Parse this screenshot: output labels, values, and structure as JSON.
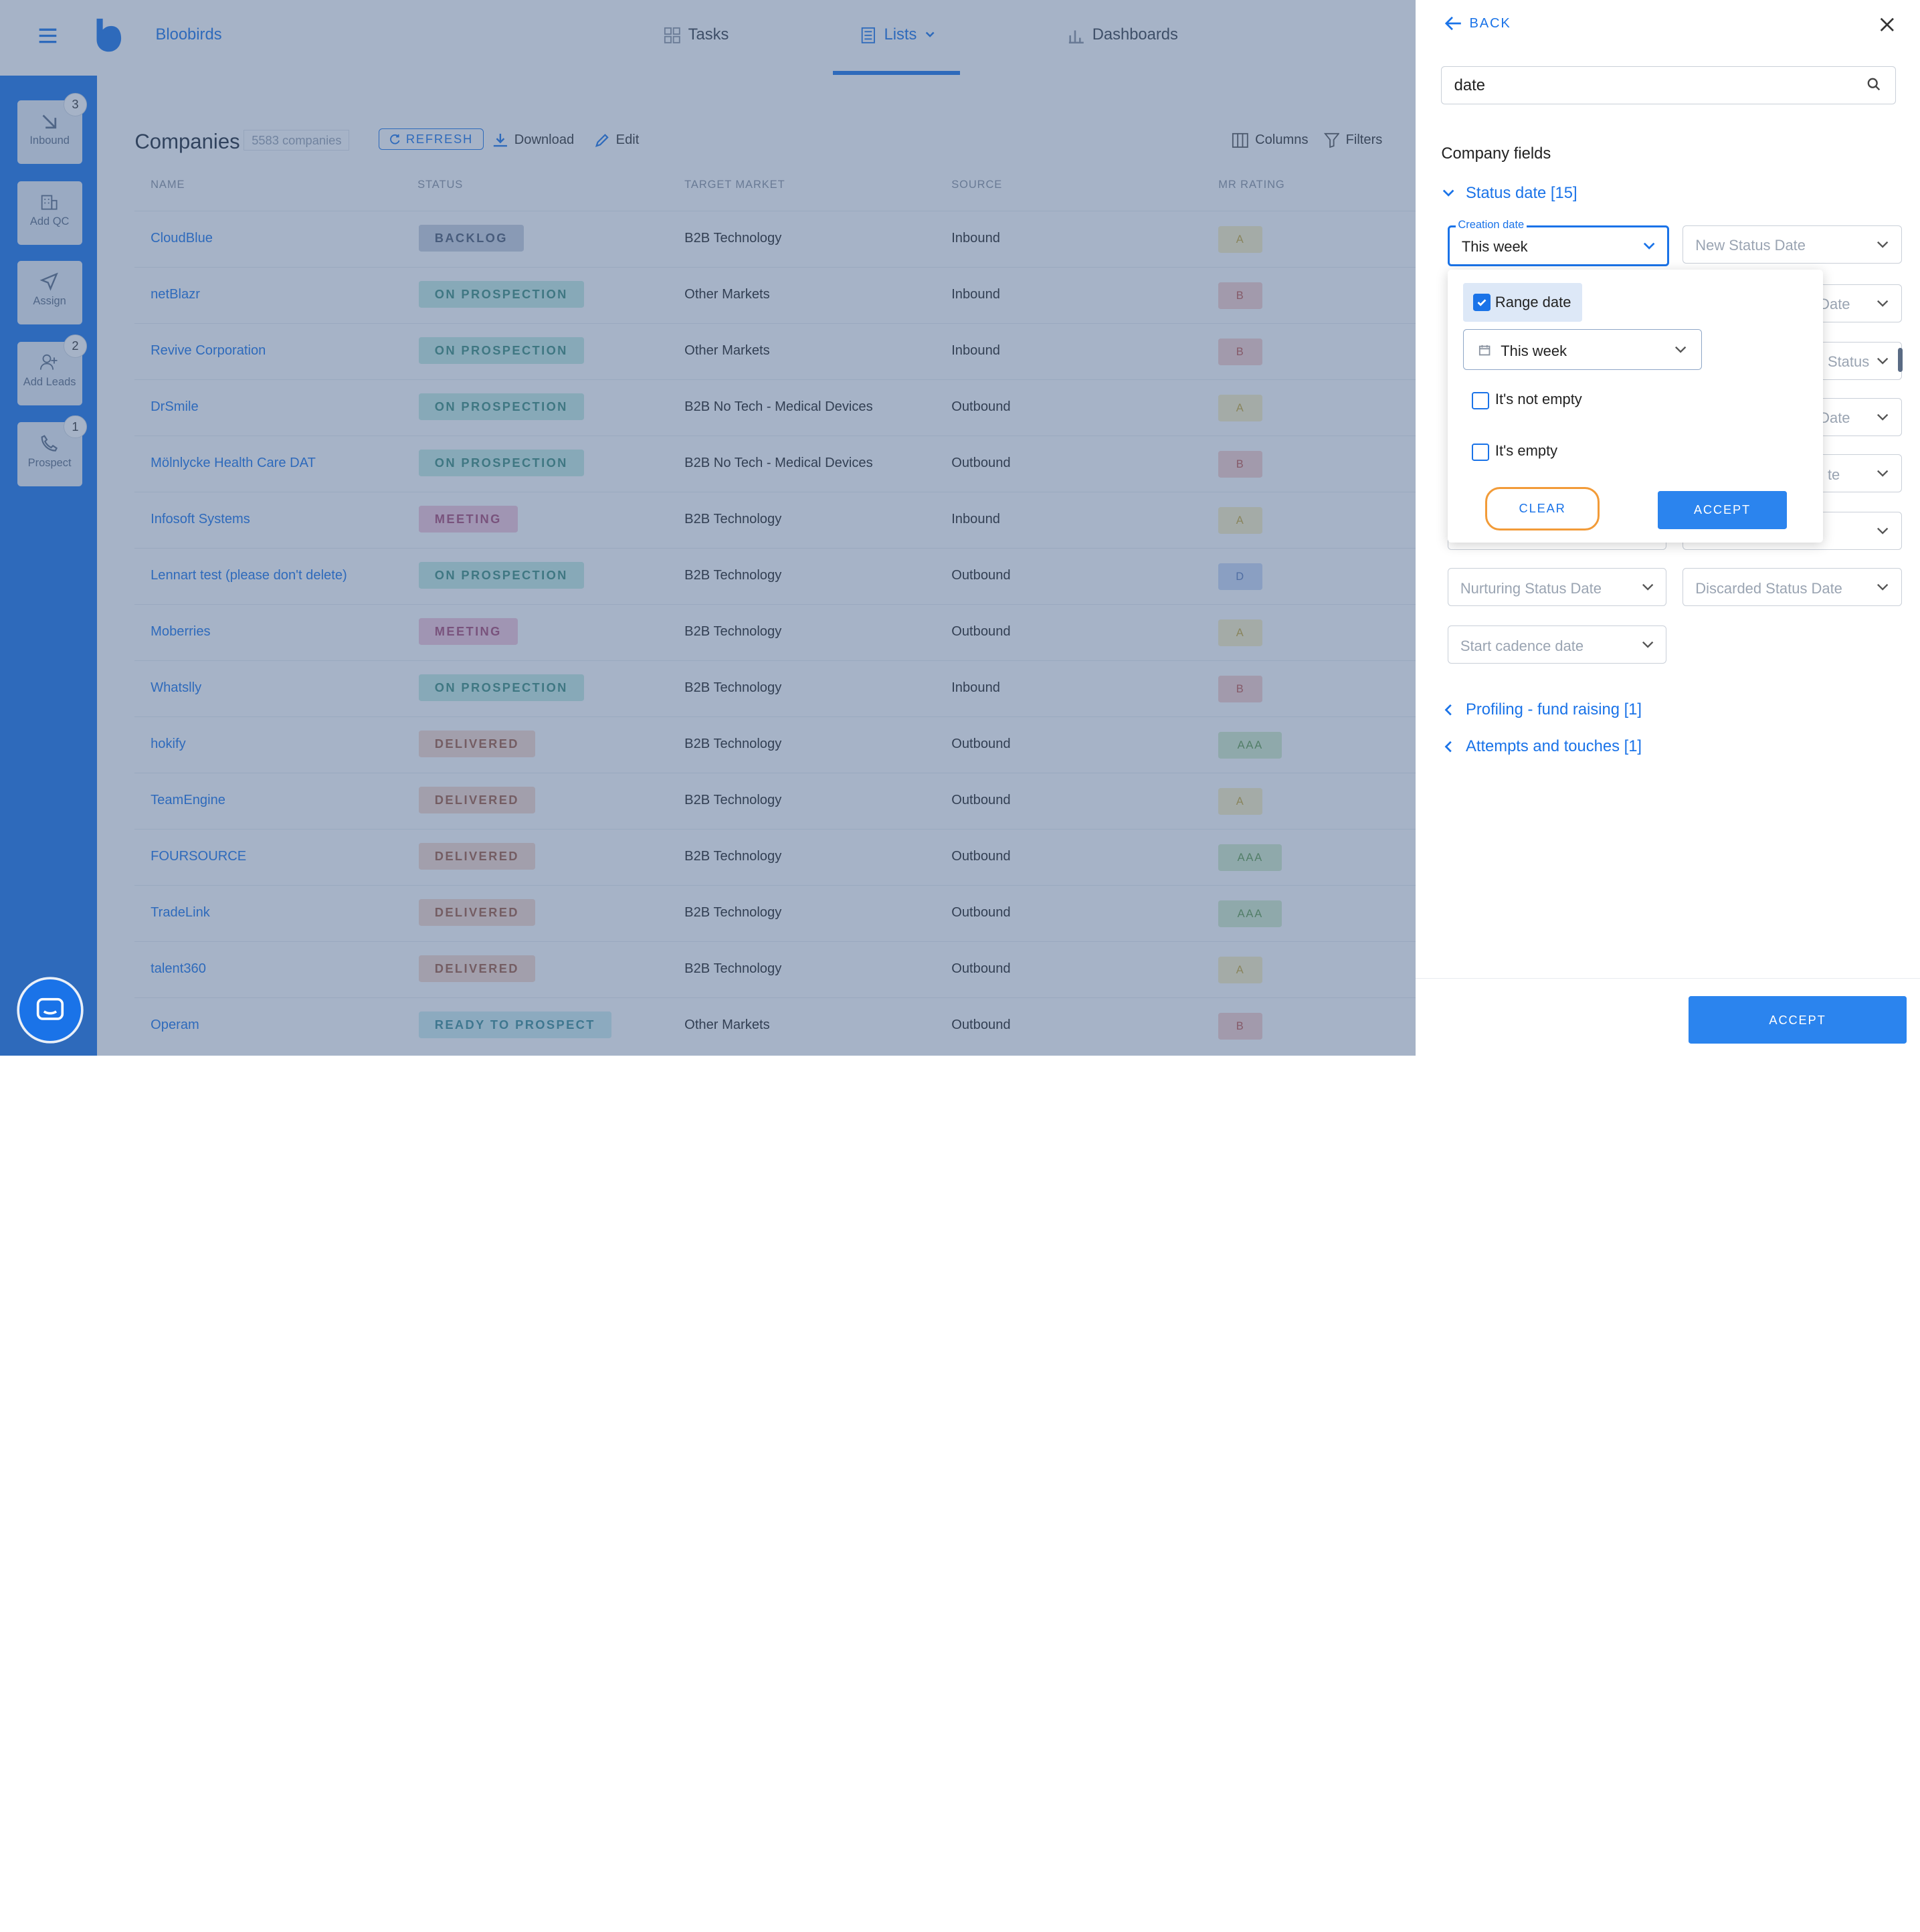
{
  "header": {
    "brand": "Bloobirds",
    "nav": [
      {
        "label": "Tasks",
        "icon": "grid-icon"
      },
      {
        "label": "Lists",
        "icon": "list-icon"
      },
      {
        "label": "Dashboards",
        "icon": "bar-chart-icon"
      }
    ]
  },
  "sidebar": {
    "items": [
      {
        "label": "Inbound",
        "badge": "3",
        "icon": "arrow-down-right-icon"
      },
      {
        "label": "Add QC",
        "badge": "",
        "icon": "building-icon"
      },
      {
        "label": "Assign",
        "badge": "",
        "icon": "send-icon"
      },
      {
        "label": "Add Leads",
        "badge": "2",
        "icon": "add-user-icon"
      },
      {
        "label": "Prospect",
        "badge": "1",
        "icon": "phone-icon"
      }
    ]
  },
  "main": {
    "title": "Companies",
    "count": "5583 companies",
    "refresh_label": "REFRESH",
    "download_label": "Download",
    "edit_label": "Edit",
    "columns_label": "Columns",
    "filters_label": "Filters",
    "columns": [
      "NAME",
      "STATUS",
      "TARGET MARKET",
      "SOURCE",
      "MR RATING"
    ],
    "rows": [
      {
        "name": "CloudBlue",
        "status": "BACKLOG",
        "market": "B2B Technology",
        "source": "Inbound",
        "rating": "A"
      },
      {
        "name": "netBlazr",
        "status": "ON PROSPECTION",
        "market": "Other Markets",
        "source": "Inbound",
        "rating": "B"
      },
      {
        "name": "Revive Corporation",
        "status": "ON PROSPECTION",
        "market": "Other Markets",
        "source": "Inbound",
        "rating": "B"
      },
      {
        "name": "DrSmile",
        "status": "ON PROSPECTION",
        "market": "B2B No Tech - Medical Devices",
        "source": "Outbound",
        "rating": "A"
      },
      {
        "name": "Mölnlycke Health Care DAT",
        "status": "ON PROSPECTION",
        "market": "B2B No Tech - Medical Devices",
        "source": "Outbound",
        "rating": "B"
      },
      {
        "name": "Infosoft Systems",
        "status": "MEETING",
        "market": "B2B Technology",
        "source": "Inbound",
        "rating": "A"
      },
      {
        "name": "Lennart test (please don't delete)",
        "status": "ON PROSPECTION",
        "market": "B2B Technology",
        "source": "Outbound",
        "rating": "D"
      },
      {
        "name": "Moberries",
        "status": "MEETING",
        "market": "B2B Technology",
        "source": "Outbound",
        "rating": "A"
      },
      {
        "name": "Whatslly",
        "status": "ON PROSPECTION",
        "market": "B2B Technology",
        "source": "Inbound",
        "rating": "B"
      },
      {
        "name": "hokify",
        "status": "DELIVERED",
        "market": "B2B Technology",
        "source": "Outbound",
        "rating": "AAA"
      },
      {
        "name": "TeamEngine",
        "status": "DELIVERED",
        "market": "B2B Technology",
        "source": "Outbound",
        "rating": "A"
      },
      {
        "name": "FOURSOURCE",
        "status": "DELIVERED",
        "market": "B2B Technology",
        "source": "Outbound",
        "rating": "AAA"
      },
      {
        "name": "TradeLink",
        "status": "DELIVERED",
        "market": "B2B Technology",
        "source": "Outbound",
        "rating": "AAA"
      },
      {
        "name": "talent360",
        "status": "DELIVERED",
        "market": "B2B Technology",
        "source": "Outbound",
        "rating": "A"
      },
      {
        "name": "Operam",
        "status": "READY TO PROSPECT",
        "market": "Other Markets",
        "source": "Outbound",
        "rating": "B"
      }
    ]
  },
  "status_colors": {
    "BACKLOG": {
      "bg": "#c7d0dd",
      "fg": "#4b5870"
    },
    "ON PROSPECTION": {
      "bg": "#c3ece3",
      "fg": "#3b8c7c"
    },
    "MEETING": {
      "bg": "#f4c6d8",
      "fg": "#a94871"
    },
    "DELIVERED": {
      "bg": "#f7d8cc",
      "fg": "#a05a40"
    },
    "READY TO PROSPECT": {
      "bg": "#cdeef0",
      "fg": "#3b8d95"
    }
  },
  "rating_colors": {
    "A": {
      "bg": "#fbf0c2",
      "fg": "#c8a836"
    },
    "B": {
      "bg": "#f8d0cc",
      "fg": "#c0554b"
    },
    "D": {
      "bg": "#c9d9f6",
      "fg": "#5b7bb9"
    },
    "AAA": {
      "bg": "#d3ecc9",
      "fg": "#5f9a4a"
    }
  },
  "panel": {
    "back_label": "BACK",
    "search_value": "date",
    "section_title": "Company fields",
    "group_status": "Status date [15]",
    "creation_label": "Creation date",
    "creation_value": "This week",
    "new_status_date": "New Status Date",
    "partial_1": "Date",
    "partial_2": "Status",
    "partial_3": "Date",
    "partial_4": "te",
    "nurturing": "Nurturing Status Date",
    "discarded": "Discarded Status Date",
    "start_cadence": "Start cadence date",
    "group_profiling": "Profiling - fund raising [1]",
    "group_attempts": "Attempts and touches [1]",
    "dropdown": {
      "range_label": "Range date",
      "range_value": "This week",
      "not_empty_label": "It's not empty",
      "empty_label": "It's empty",
      "clear_label": "CLEAR",
      "accept_label": "ACCEPT"
    },
    "footer_accept": "ACCEPT"
  }
}
